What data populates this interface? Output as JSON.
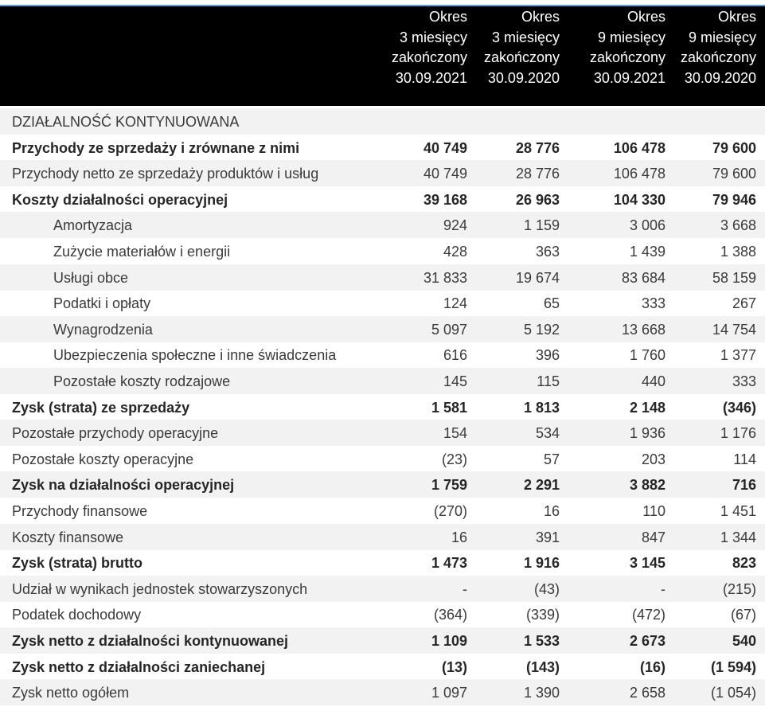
{
  "header": {
    "columns": [
      [
        "Okres",
        "3 miesięcy",
        "zakończony",
        "30.09.2021"
      ],
      [
        "Okres",
        "3 miesięcy",
        "zakończony",
        "30.09.2020"
      ],
      [
        "Okres",
        "9 miesięcy",
        "zakończony",
        "30.09.2021"
      ],
      [
        "Okres",
        "9 miesięcy",
        "zakończony",
        "30.09.2020"
      ]
    ]
  },
  "table": {
    "rows": [
      {
        "label": "DZIAŁALNOŚĆ KONTYNUOWANA",
        "section": true
      },
      {
        "label": "Przychody ze sprzedaży i zrównane z nimi",
        "bold": true,
        "values": [
          "40 749",
          "28 776",
          "106 478",
          "79 600"
        ]
      },
      {
        "label": "Przychody netto ze sprzedaży produktów i usług",
        "values": [
          "40 749",
          "28 776",
          "106 478",
          "79 600"
        ]
      },
      {
        "label": "Koszty działalności operacyjnej",
        "bold": true,
        "values": [
          "39 168",
          "26 963",
          "104 330",
          "79 946"
        ]
      },
      {
        "label": "Amortyzacja",
        "indent": true,
        "values": [
          "924",
          "1 159",
          "3 006",
          "3 668"
        ]
      },
      {
        "label": "Zużycie materiałów i energii",
        "indent": true,
        "values": [
          "428",
          "363",
          "1 439",
          "1 388"
        ]
      },
      {
        "label": "Usługi obce",
        "indent": true,
        "values": [
          "31 833",
          "19 674",
          "83 684",
          "58 159"
        ]
      },
      {
        "label": "Podatki i opłaty",
        "indent": true,
        "values": [
          "124",
          "65",
          "333",
          "267"
        ]
      },
      {
        "label": "Wynagrodzenia",
        "indent": true,
        "values": [
          "5 097",
          "5 192",
          "13 668",
          "14 754"
        ]
      },
      {
        "label": "Ubezpieczenia społeczne i inne świadczenia",
        "indent": true,
        "values": [
          "616",
          "396",
          "1 760",
          "1 377"
        ]
      },
      {
        "label": "Pozostałe koszty rodzajowe",
        "indent": true,
        "values": [
          "145",
          "115",
          "440",
          "333"
        ]
      },
      {
        "label": "Zysk (strata) ze sprzedaży",
        "bold": true,
        "values": [
          "1 581",
          "1 813",
          "2 148",
          "(346)"
        ]
      },
      {
        "label": "Pozostałe przychody operacyjne",
        "values": [
          "154",
          "534",
          "1 936",
          "1 176"
        ]
      },
      {
        "label": "Pozostałe koszty operacyjne",
        "values": [
          "(23)",
          "57",
          "203",
          "114"
        ]
      },
      {
        "label": "Zysk na działalności operacyjnej",
        "bold": true,
        "values": [
          "1 759",
          "2 291",
          "3 882",
          "716"
        ]
      },
      {
        "label": "Przychody finansowe",
        "values": [
          "(270)",
          "16",
          "110",
          "1 451"
        ]
      },
      {
        "label": "Koszty finansowe",
        "values": [
          "16",
          "391",
          "847",
          "1 344"
        ]
      },
      {
        "label": "Zysk (strata) brutto",
        "bold": true,
        "values": [
          "1 473",
          "1 916",
          "3 145",
          "823"
        ]
      },
      {
        "label": "Udział w wynikach jednostek stowarzyszonych",
        "values": [
          "-",
          "(43)",
          "-",
          "(215)"
        ]
      },
      {
        "label": "Podatek dochodowy",
        "values": [
          "(364)",
          "(339)",
          "(472)",
          "(67)"
        ]
      },
      {
        "label": "Zysk netto z działalności kontynuowanej",
        "bold": true,
        "values": [
          "1 109",
          "1 533",
          "2 673",
          "540"
        ]
      },
      {
        "label": "Zysk netto z działalności zaniechanej",
        "bold": true,
        "values": [
          "(13)",
          "(143)",
          "(16)",
          "(1 594)"
        ]
      },
      {
        "label": "Zysk netto ogółem",
        "values": [
          "1 097",
          "1 390",
          "2 658",
          "(1 054)"
        ]
      }
    ]
  }
}
